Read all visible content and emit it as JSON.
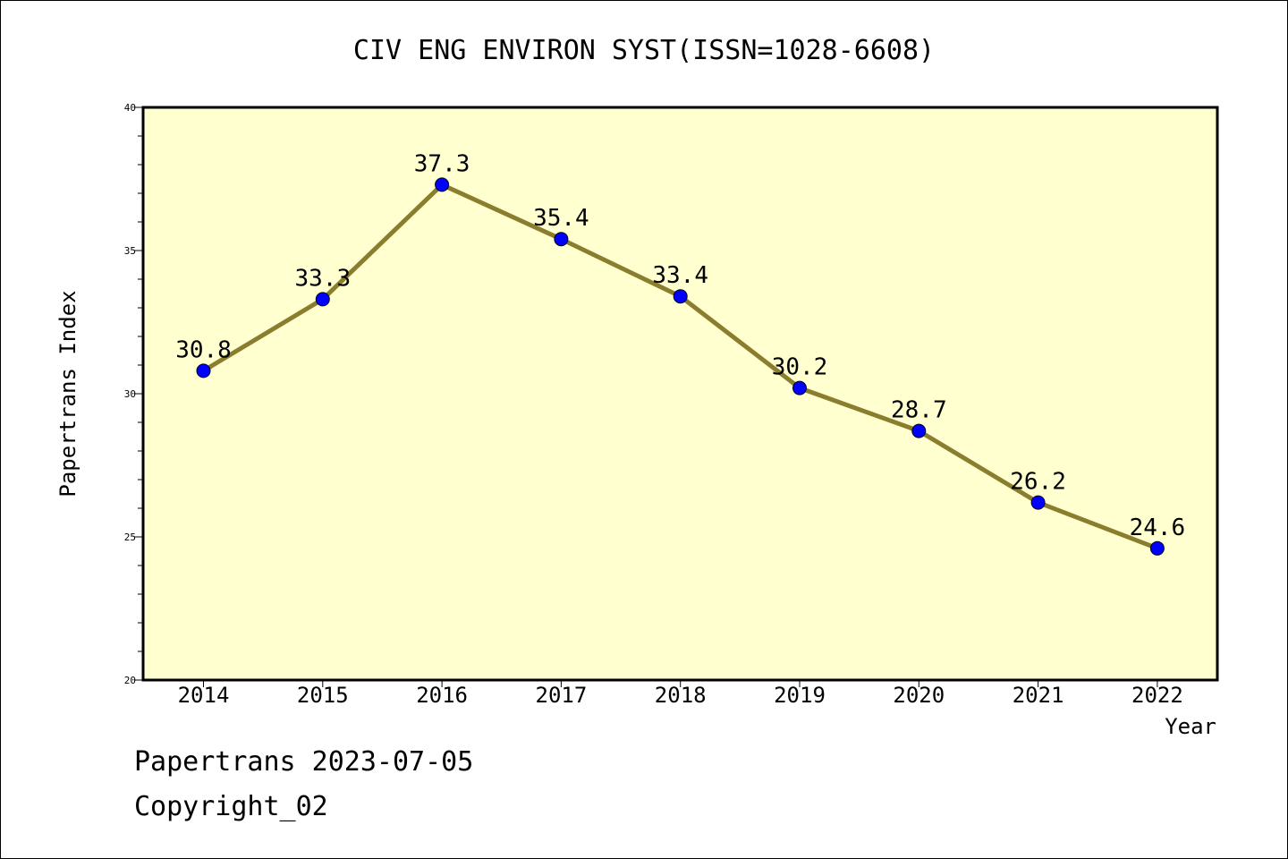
{
  "chart_data": {
    "type": "line",
    "title": "CIV ENG ENVIRON SYST(ISSN=1028-6608)",
    "xlabel": "Year",
    "ylabel": "Papertrans Index",
    "categories": [
      "2014",
      "2015",
      "2016",
      "2017",
      "2018",
      "2019",
      "2020",
      "2021",
      "2022"
    ],
    "series": [
      {
        "values": [
          30.8,
          33.3,
          37.3,
          35.4,
          33.4,
          30.2,
          28.7,
          26.2,
          24.6
        ],
        "labels": [
          "30.8",
          "33.3",
          "37.3",
          "35.4",
          "33.4",
          "30.2",
          "28.7",
          "26.2",
          "24.6"
        ]
      }
    ],
    "ylim": [
      20,
      40
    ],
    "yticks": [
      "20",
      "25",
      "30",
      "35",
      "40"
    ],
    "grid": false,
    "colors": {
      "plot_background": "#ffffd0",
      "line": "#8b7d2e",
      "marker": "#0000ff"
    }
  },
  "footer": {
    "line1": "Papertrans 2023-07-05",
    "line2": "Copyright_02"
  }
}
